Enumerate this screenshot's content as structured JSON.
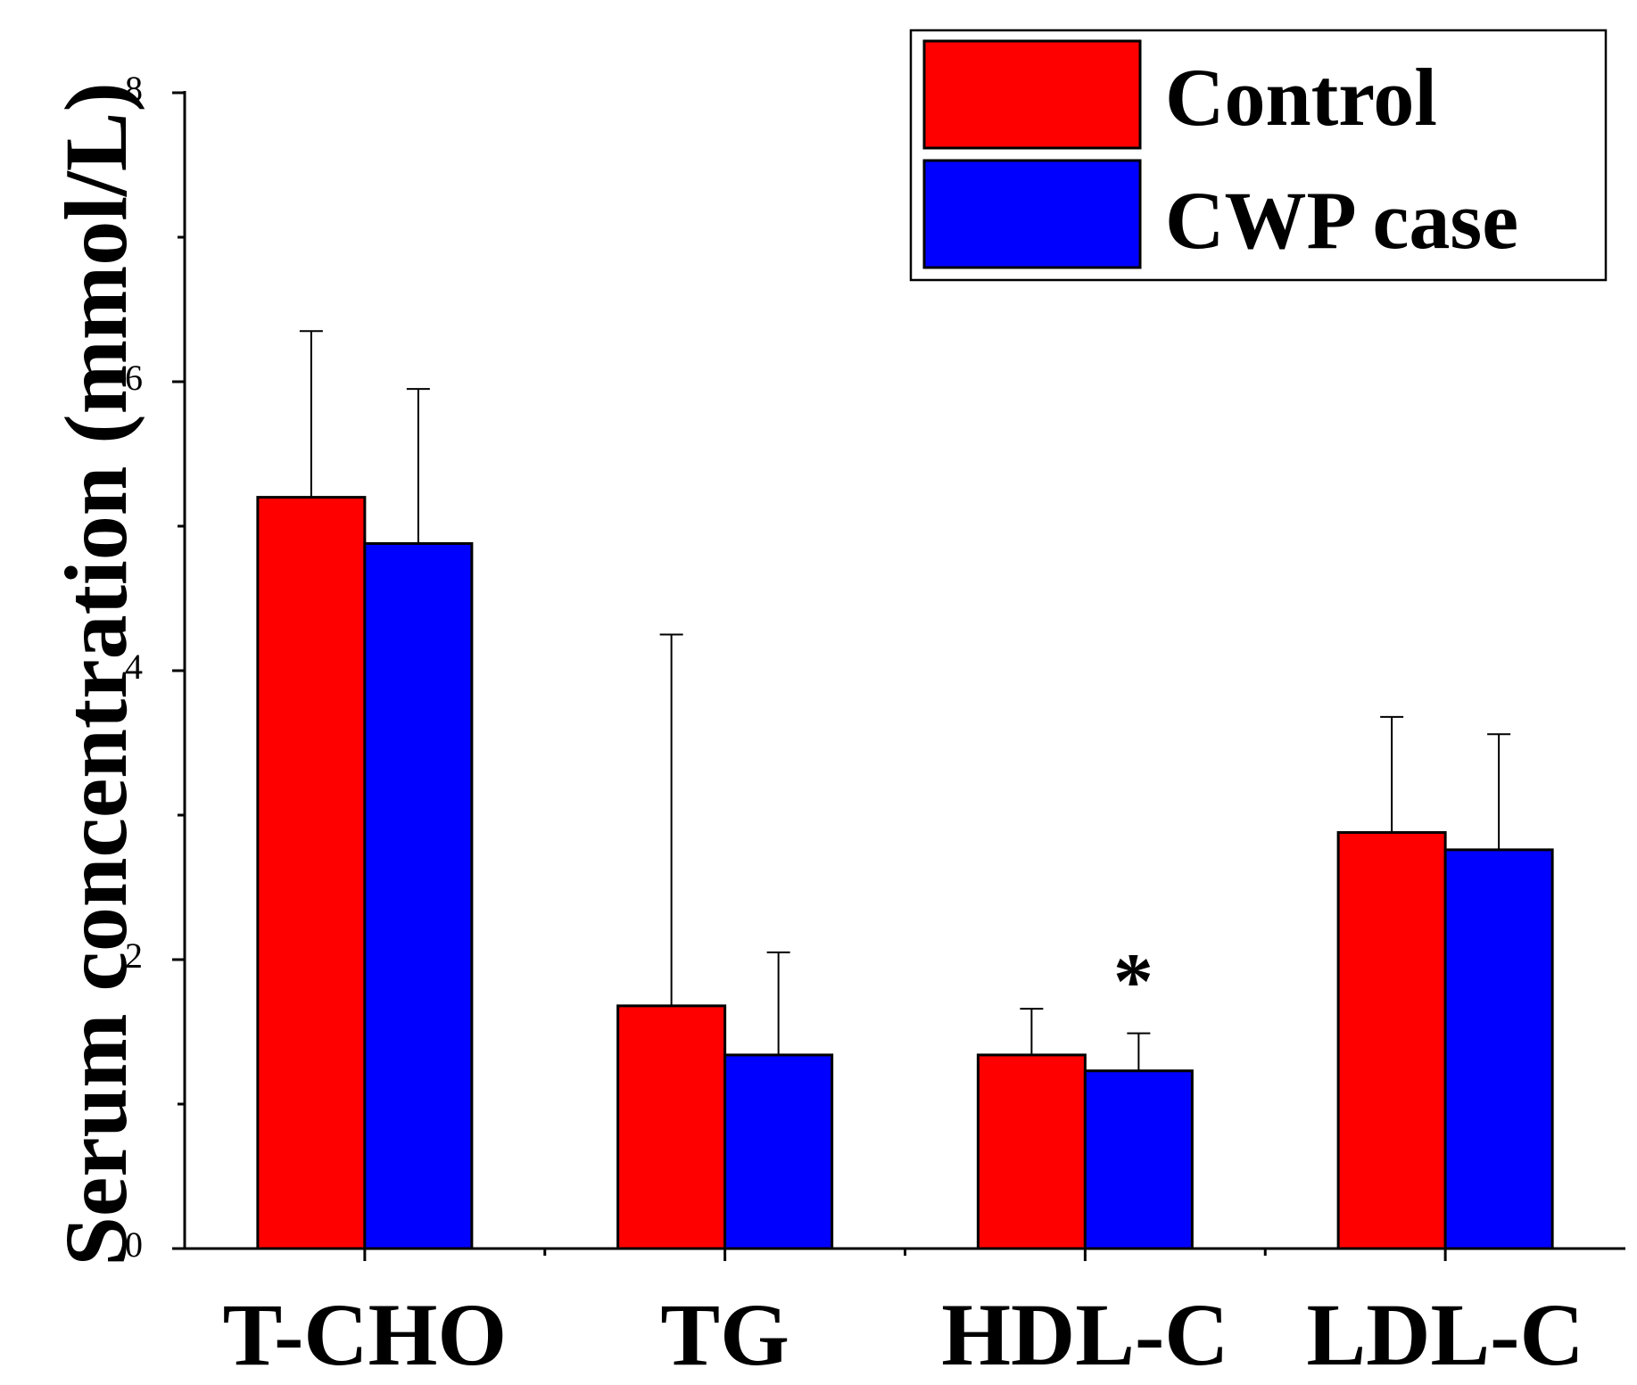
{
  "chart_data": {
    "type": "bar",
    "title": "",
    "xlabel": "",
    "ylabel": "Serum concentration (mmol/L)",
    "ylim": [
      0,
      8
    ],
    "yticks": [
      "0",
      "2",
      "4",
      "6",
      "8"
    ],
    "categories": [
      "T-CHO",
      "TG",
      "HDL-C",
      "LDL-C"
    ],
    "series": [
      {
        "name": "Control",
        "color": "#ff0000",
        "values": [
          5.2,
          1.68,
          1.34,
          2.88
        ],
        "errors": [
          1.15,
          2.57,
          0.32,
          0.8
        ]
      },
      {
        "name": "CWP case",
        "color": "#0000ff",
        "values": [
          4.88,
          1.34,
          1.23,
          2.76
        ],
        "errors": [
          1.07,
          0.71,
          0.26,
          0.8
        ]
      }
    ],
    "annotations": [
      {
        "text": "*",
        "category": "HDL-C",
        "series": "CWP case"
      }
    ],
    "legend": {
      "position": "top-right",
      "entries": [
        "Control",
        "CWP case"
      ]
    },
    "grid": false
  }
}
